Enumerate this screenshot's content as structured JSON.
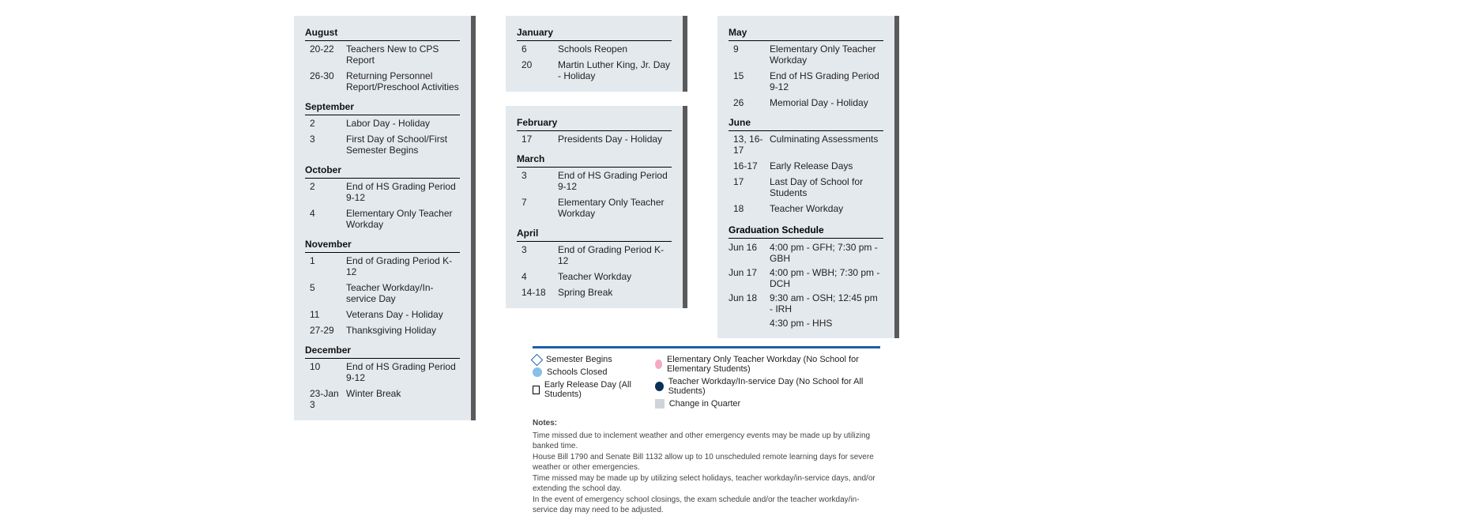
{
  "columns": [
    {
      "panels": [
        {
          "months": [
            {
              "name": "August",
              "rows": [
                {
                  "date": "20-22",
                  "desc": "Teachers New to CPS Report"
                },
                {
                  "date": "26-30",
                  "desc": "Returning Personnel Report/Preschool Activities"
                }
              ]
            },
            {
              "name": "September",
              "rows": [
                {
                  "date": "2",
                  "desc": "Labor Day - Holiday"
                },
                {
                  "date": "3",
                  "desc": "First Day of School/First Semester Begins"
                }
              ]
            },
            {
              "name": "October",
              "rows": [
                {
                  "date": "2",
                  "desc": "End of HS Grading Period 9-12"
                },
                {
                  "date": "4",
                  "desc": "Elementary Only Teacher Workday"
                }
              ]
            },
            {
              "name": "November",
              "rows": [
                {
                  "date": "1",
                  "desc": "End of Grading Period K-12"
                },
                {
                  "date": "5",
                  "desc": "Teacher Workday/In-service Day"
                },
                {
                  "date": "11",
                  "desc": "Veterans Day - Holiday"
                },
                {
                  "date": "27-29",
                  "desc": "Thanksgiving Holiday"
                }
              ]
            },
            {
              "name": "December",
              "rows": [
                {
                  "date": "10",
                  "desc": "End of HS Grading Period 9-12"
                },
                {
                  "date": "23-Jan 3",
                  "desc": "Winter Break"
                }
              ]
            }
          ]
        }
      ]
    },
    {
      "panels": [
        {
          "months": [
            {
              "name": "January",
              "rows": [
                {
                  "date": "6",
                  "desc": "Schools Reopen"
                },
                {
                  "date": "20",
                  "desc": "Martin Luther King, Jr. Day - Holiday"
                }
              ]
            }
          ]
        },
        {
          "months": [
            {
              "name": "February",
              "rows": [
                {
                  "date": "17",
                  "desc": "Presidents Day - Holiday"
                }
              ]
            },
            {
              "name": "March",
              "rows": [
                {
                  "date": "3",
                  "desc": "End of HS Grading Period 9-12"
                },
                {
                  "date": "7",
                  "desc": "Elementary Only Teacher Workday"
                }
              ]
            },
            {
              "name": "April",
              "rows": [
                {
                  "date": "3",
                  "desc": "End of Grading Period K-12"
                },
                {
                  "date": "4",
                  "desc": "Teacher Workday"
                },
                {
                  "date": "14-18",
                  "desc": "Spring Break"
                }
              ]
            }
          ]
        }
      ]
    },
    {
      "panels": [
        {
          "months": [
            {
              "name": "May",
              "rows": [
                {
                  "date": "9",
                  "desc": "Elementary Only Teacher Workday"
                },
                {
                  "date": "15",
                  "desc": "End of HS Grading Period 9-12"
                },
                {
                  "date": "26",
                  "desc": "Memorial Day - Holiday"
                }
              ]
            },
            {
              "name": "June",
              "rows": [
                {
                  "date": "13, 16-17",
                  "desc": "Culminating Assessments"
                },
                {
                  "date": "16-17",
                  "desc": "Early Release Days"
                },
                {
                  "date": "17",
                  "desc": "Last Day of School for Students"
                },
                {
                  "date": "18",
                  "desc": "Teacher Workday"
                }
              ]
            }
          ],
          "graduation": {
            "header": "Graduation Schedule",
            "rows": [
              {
                "date": "Jun 16",
                "detail": "4:00 pm - GFH; 7:30 pm - GBH"
              },
              {
                "date": "Jun 17",
                "detail": "4:00 pm - WBH; 7:30 pm - DCH"
              },
              {
                "date": "Jun 18",
                "detail": "9:30 am - OSH; 12:45 pm - IRH"
              },
              {
                "date": "",
                "detail": "4:30 pm - HHS"
              }
            ]
          }
        }
      ]
    }
  ],
  "legend": {
    "left": [
      {
        "icon": "diamond",
        "color": "#1e5fa8",
        "label": "Semester Begins"
      },
      {
        "icon": "circle",
        "color": "#87bfe8",
        "label": "Schools Closed"
      },
      {
        "icon": "square",
        "color": "#000000",
        "label": "Early Release Day (All Students)"
      }
    ],
    "right": [
      {
        "icon": "circle",
        "color": "#f4a8c4",
        "label": "Elementary Only Teacher Workday (No School for Elementary Students)"
      },
      {
        "icon": "circle",
        "color": "#0c2f5a",
        "label": "Teacher Workday/In-service Day (No School for All Students)"
      },
      {
        "icon": "greysq",
        "color": "#d0d4d8",
        "label": "Change in Quarter"
      }
    ]
  },
  "notes": {
    "header": "Notes:",
    "lines": [
      "Time missed due to inclement weather and other emergency events may be made up by utilizing banked time.",
      "House Bill 1790 and Senate Bill 1132 allow up to 10 unscheduled remote learning days for severe weather or other emergencies.",
      "Time missed may be made up by utilizing select holidays, teacher workday/in-service days, and/or extending the school day.",
      "In the event of emergency school closings, the exam schedule and/or the teacher workday/in-service day may need to be adjusted."
    ]
  }
}
